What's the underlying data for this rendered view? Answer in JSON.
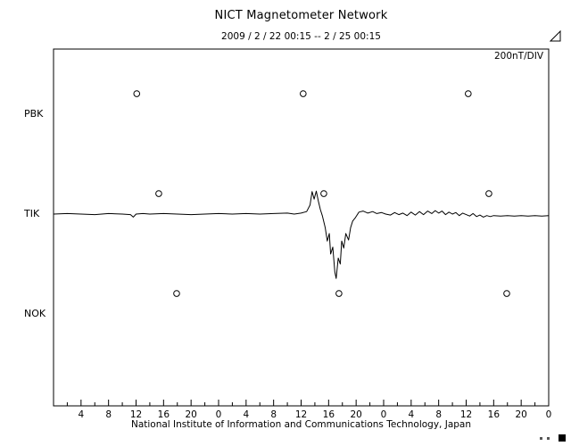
{
  "chart_data": {
    "type": "line",
    "title": "NICT Magnetometer Network",
    "subtitle": "2009 /  2 / 22   00:15 --  2 / 25   00:15",
    "scale_label": "200nT/DIV",
    "nT_per_div": 200,
    "footer": "National Institute of Information and Communications Technology, Japan",
    "x_axis": {
      "unit": "hour",
      "range_hours": [
        0,
        72
      ],
      "major_tick_hours": 4,
      "minor_tick_hours": 2,
      "tick_labels": [
        "4",
        "8",
        "12",
        "16",
        "20",
        "0",
        "4",
        "8",
        "12",
        "16",
        "20",
        "0",
        "4",
        "8",
        "12",
        "16",
        "20",
        "0"
      ]
    },
    "marker_offset_nT": 41,
    "stations": [
      {
        "name": "PBK",
        "marker_hours": [
          12.1,
          36.3,
          60.3
        ],
        "series": null
      },
      {
        "name": "TIK",
        "marker_hours": [
          15.3,
          39.3,
          63.3
        ],
        "series": [
          [
            0,
            0
          ],
          [
            2,
            1
          ],
          [
            4,
            0
          ],
          [
            6,
            -1
          ],
          [
            8,
            1
          ],
          [
            10,
            0
          ],
          [
            11.2,
            -1
          ],
          [
            11.6,
            -6
          ],
          [
            12,
            0
          ],
          [
            13,
            1
          ],
          [
            14,
            0
          ],
          [
            16,
            1
          ],
          [
            18,
            0
          ],
          [
            20,
            -1
          ],
          [
            22,
            0
          ],
          [
            24,
            1
          ],
          [
            26,
            0
          ],
          [
            28,
            1
          ],
          [
            30,
            0
          ],
          [
            32,
            1
          ],
          [
            34,
            2
          ],
          [
            35,
            0
          ],
          [
            36,
            2
          ],
          [
            36.8,
            5
          ],
          [
            37.3,
            18
          ],
          [
            37.6,
            45
          ],
          [
            37.9,
            30
          ],
          [
            38.2,
            46
          ],
          [
            38.5,
            26
          ],
          [
            38.8,
            9
          ],
          [
            39.1,
            -4
          ],
          [
            39.5,
            -27
          ],
          [
            39.8,
            -54
          ],
          [
            40.1,
            -39
          ],
          [
            40.3,
            -80
          ],
          [
            40.6,
            -66
          ],
          [
            40.9,
            -116
          ],
          [
            41.1,
            -129
          ],
          [
            41.4,
            -88
          ],
          [
            41.7,
            -100
          ],
          [
            41.9,
            -54
          ],
          [
            42.2,
            -68
          ],
          [
            42.5,
            -39
          ],
          [
            42.9,
            -52
          ],
          [
            43.2,
            -27
          ],
          [
            43.5,
            -14
          ],
          [
            43.9,
            -7
          ],
          [
            44.4,
            4
          ],
          [
            45,
            6
          ],
          [
            45.7,
            2
          ],
          [
            46.4,
            5
          ],
          [
            47,
            1
          ],
          [
            47.7,
            3
          ],
          [
            48.3,
            0
          ],
          [
            49,
            -2
          ],
          [
            49.6,
            3
          ],
          [
            50.2,
            -1
          ],
          [
            50.8,
            2
          ],
          [
            51.4,
            -3
          ],
          [
            52,
            4
          ],
          [
            52.6,
            -2
          ],
          [
            53.2,
            5
          ],
          [
            53.8,
            -1
          ],
          [
            54.4,
            6
          ],
          [
            55,
            1
          ],
          [
            55.5,
            7
          ],
          [
            56,
            2
          ],
          [
            56.5,
            6
          ],
          [
            57,
            -1
          ],
          [
            57.5,
            4
          ],
          [
            58,
            0
          ],
          [
            58.5,
            3
          ],
          [
            59,
            -3
          ],
          [
            59.5,
            2
          ],
          [
            60,
            -1
          ],
          [
            60.5,
            -4
          ],
          [
            61,
            1
          ],
          [
            61.5,
            -5
          ],
          [
            62,
            -2
          ],
          [
            62.5,
            -6
          ],
          [
            63,
            -3
          ],
          [
            63.5,
            -5
          ],
          [
            64,
            -3
          ],
          [
            65,
            -4
          ],
          [
            66,
            -3
          ],
          [
            67,
            -4
          ],
          [
            68,
            -3
          ],
          [
            69,
            -4
          ],
          [
            70,
            -3
          ],
          [
            71,
            -4
          ],
          [
            72,
            -3
          ]
        ]
      },
      {
        "name": "NOK",
        "marker_hours": [
          17.9,
          41.5,
          65.9
        ],
        "series": null
      }
    ]
  }
}
